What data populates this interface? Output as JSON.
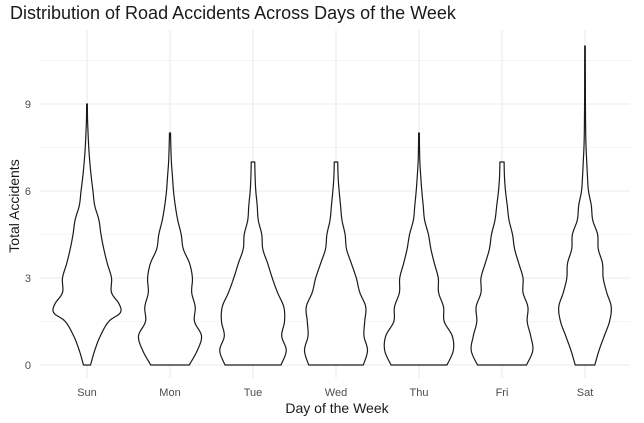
{
  "chart_data": {
    "type": "violin",
    "title": "Distribution of Road Accidents Across Days of the Week",
    "xlabel": "Day of the Week",
    "ylabel": "Total Accidents",
    "ylim": [
      0,
      11
    ],
    "yticks": [
      0,
      3,
      6,
      9
    ],
    "grid": true,
    "line_color": "#1a1a1a",
    "grid_color": "#ebebeb",
    "categories": [
      "Sun",
      "Mon",
      "Tue",
      "Wed",
      "Thu",
      "Fri",
      "Sat"
    ],
    "series": [
      {
        "category": "Sun",
        "max": 9,
        "profile": [
          [
            0,
            0.1
          ],
          [
            0.5,
            0.22
          ],
          [
            1.0,
            0.38
          ],
          [
            1.5,
            0.62
          ],
          [
            1.8,
            0.95
          ],
          [
            2.1,
            0.92
          ],
          [
            2.5,
            0.7
          ],
          [
            3.0,
            0.7
          ],
          [
            3.5,
            0.58
          ],
          [
            4.0,
            0.48
          ],
          [
            4.5,
            0.4
          ],
          [
            5.0,
            0.34
          ],
          [
            5.5,
            0.22
          ],
          [
            6.0,
            0.17
          ],
          [
            6.5,
            0.12
          ],
          [
            7.0,
            0.08
          ],
          [
            7.5,
            0.05
          ],
          [
            8.0,
            0.03
          ],
          [
            8.5,
            0.015
          ],
          [
            9.0,
            0.01
          ]
        ]
      },
      {
        "category": "Mon",
        "max": 8,
        "profile": [
          [
            0,
            0.55
          ],
          [
            0.5,
            0.78
          ],
          [
            1.0,
            0.9
          ],
          [
            1.5,
            0.7
          ],
          [
            2.0,
            0.72
          ],
          [
            2.5,
            0.62
          ],
          [
            3.0,
            0.64
          ],
          [
            3.5,
            0.56
          ],
          [
            4.0,
            0.38
          ],
          [
            4.5,
            0.32
          ],
          [
            5.0,
            0.22
          ],
          [
            5.5,
            0.15
          ],
          [
            6.0,
            0.1
          ],
          [
            6.5,
            0.07
          ],
          [
            7.0,
            0.04
          ],
          [
            7.5,
            0.025
          ],
          [
            8.0,
            0.015
          ]
        ]
      },
      {
        "category": "Tue",
        "max": 7,
        "profile": [
          [
            0,
            0.8
          ],
          [
            0.5,
            0.95
          ],
          [
            1.0,
            0.82
          ],
          [
            1.5,
            0.9
          ],
          [
            2.0,
            0.88
          ],
          [
            2.5,
            0.7
          ],
          [
            3.0,
            0.55
          ],
          [
            3.5,
            0.42
          ],
          [
            4.0,
            0.28
          ],
          [
            4.5,
            0.25
          ],
          [
            5.0,
            0.15
          ],
          [
            5.5,
            0.12
          ],
          [
            6.0,
            0.08
          ],
          [
            6.5,
            0.06
          ],
          [
            7.0,
            0.05
          ]
        ]
      },
      {
        "category": "Wed",
        "max": 7,
        "profile": [
          [
            0,
            0.78
          ],
          [
            0.5,
            0.9
          ],
          [
            1.0,
            0.8
          ],
          [
            1.5,
            0.82
          ],
          [
            2.0,
            0.85
          ],
          [
            2.5,
            0.68
          ],
          [
            3.0,
            0.58
          ],
          [
            3.5,
            0.44
          ],
          [
            4.0,
            0.3
          ],
          [
            4.5,
            0.26
          ],
          [
            5.0,
            0.17
          ],
          [
            5.5,
            0.13
          ],
          [
            6.0,
            0.09
          ],
          [
            6.5,
            0.06
          ],
          [
            7.0,
            0.05
          ]
        ]
      },
      {
        "category": "Thu",
        "max": 8,
        "profile": [
          [
            0,
            0.8
          ],
          [
            0.5,
            0.98
          ],
          [
            1.0,
            0.95
          ],
          [
            1.5,
            0.72
          ],
          [
            2.0,
            0.7
          ],
          [
            2.5,
            0.56
          ],
          [
            3.0,
            0.55
          ],
          [
            3.5,
            0.44
          ],
          [
            4.0,
            0.34
          ],
          [
            4.5,
            0.27
          ],
          [
            5.0,
            0.16
          ],
          [
            5.5,
            0.12
          ],
          [
            6.0,
            0.08
          ],
          [
            6.5,
            0.05
          ],
          [
            7.0,
            0.025
          ],
          [
            7.5,
            0.015
          ],
          [
            8.0,
            0.01
          ]
        ]
      },
      {
        "category": "Fri",
        "max": 7,
        "profile": [
          [
            0,
            0.7
          ],
          [
            0.5,
            0.88
          ],
          [
            1.0,
            0.82
          ],
          [
            1.5,
            0.72
          ],
          [
            2.0,
            0.74
          ],
          [
            2.5,
            0.6
          ],
          [
            3.0,
            0.6
          ],
          [
            3.5,
            0.48
          ],
          [
            4.0,
            0.36
          ],
          [
            4.5,
            0.3
          ],
          [
            5.0,
            0.2
          ],
          [
            5.5,
            0.15
          ],
          [
            6.0,
            0.1
          ],
          [
            6.5,
            0.07
          ],
          [
            7.0,
            0.06
          ]
        ]
      },
      {
        "category": "Sat",
        "max": 11,
        "profile": [
          [
            0,
            0.28
          ],
          [
            0.5,
            0.4
          ],
          [
            1.0,
            0.55
          ],
          [
            1.5,
            0.7
          ],
          [
            2.0,
            0.75
          ],
          [
            2.5,
            0.62
          ],
          [
            3.0,
            0.52
          ],
          [
            3.5,
            0.5
          ],
          [
            4.0,
            0.38
          ],
          [
            4.5,
            0.36
          ],
          [
            5.0,
            0.22
          ],
          [
            5.5,
            0.18
          ],
          [
            6.0,
            0.1
          ],
          [
            6.5,
            0.07
          ],
          [
            7.0,
            0.05
          ],
          [
            7.5,
            0.03
          ],
          [
            8.0,
            0.02
          ],
          [
            9.0,
            0.012
          ],
          [
            10.0,
            0.01
          ],
          [
            11.0,
            0.008
          ]
        ]
      }
    ]
  }
}
